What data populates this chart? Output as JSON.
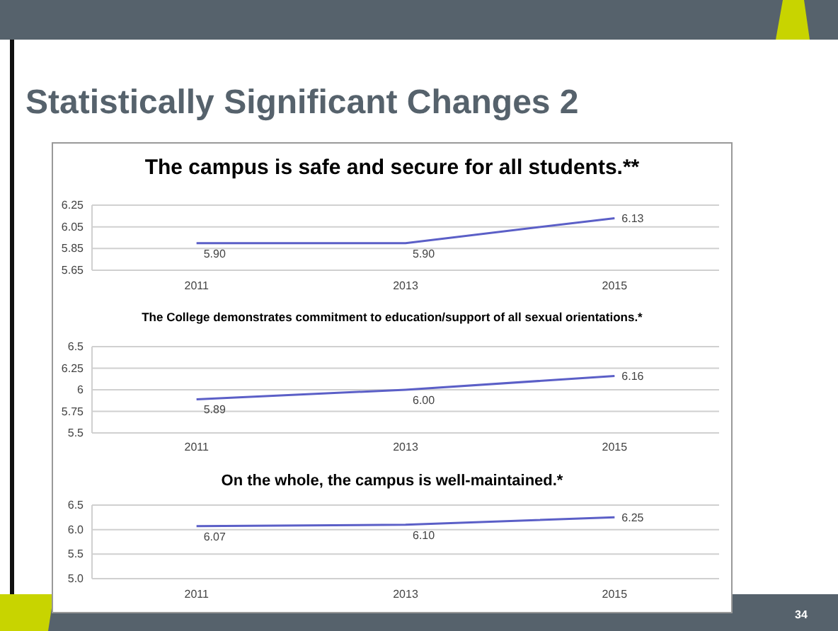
{
  "chart_data": [
    {
      "type": "other",
      "title": "Statistically Significant Changes 2",
      "annotations": [
        "34"
      ]
    },
    {
      "type": "line",
      "title": "The campus is safe and secure for all students.**",
      "categories": [
        "2011",
        "2013",
        "2015"
      ],
      "series": [
        {
          "color": "#5b5fc7",
          "values": [
            5.9,
            5.9,
            6.13
          ],
          "value_labels": [
            "5.90",
            "5.90",
            "6.13"
          ]
        }
      ],
      "ylim": [
        5.65,
        6.25
      ],
      "yticks": [
        5.65,
        5.85,
        6.05,
        6.25
      ],
      "grid": "y"
    },
    {
      "type": "line",
      "title": "The College demonstrates commitment to education/support of all sexual orientations.*",
      "categories": [
        "2011",
        "2013",
        "2015"
      ],
      "series": [
        {
          "color": "#5b5fc7",
          "values": [
            5.89,
            6.0,
            6.16
          ],
          "value_labels": [
            "5.89",
            "6.00",
            "6.16"
          ]
        }
      ],
      "ylim": [
        5.5,
        6.5
      ],
      "yticks": [
        5.5,
        5.75,
        6,
        6.25,
        6.5
      ],
      "grid": "y"
    },
    {
      "type": "line",
      "title": "On the whole, the campus is well-maintained.*",
      "categories": [
        "2011",
        "2013",
        "2015"
      ],
      "series": [
        {
          "color": "#5b5fc7",
          "values": [
            6.07,
            6.1,
            6.25
          ],
          "value_labels": [
            "6.07",
            "6.10",
            "6.25"
          ]
        }
      ],
      "ylim": [
        5.0,
        6.5
      ],
      "yticks": [
        {
          "value": 5.0,
          "label": "5.0"
        },
        {
          "value": 5.5,
          "label": "5.5"
        },
        {
          "value": 6.0,
          "label": "6.0"
        },
        {
          "value": 6.5,
          "label": "6.5"
        }
      ],
      "grid": "y"
    }
  ]
}
